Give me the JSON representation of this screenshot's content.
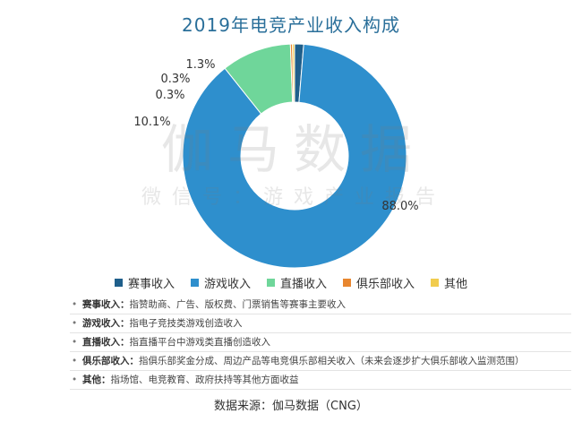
{
  "title": "2019年电竞产业收入构成",
  "watermark": {
    "main": "伽马数据",
    "sub": "微信号：游戏产业报告"
  },
  "chart_data": {
    "type": "pie",
    "title": "2019年电竞产业收入构成",
    "donut": true,
    "legend_position": "bottom",
    "slices": [
      {
        "name": "赛事收入",
        "value": 1.3,
        "label": "1.3%",
        "color": "#1f5f8b"
      },
      {
        "name": "游戏收入",
        "value": 88.0,
        "label": "88.0%",
        "color": "#2e8fcd"
      },
      {
        "name": "直播收入",
        "value": 10.1,
        "label": "10.1%",
        "color": "#6fd69a"
      },
      {
        "name": "俱乐部收入",
        "value": 0.3,
        "label": "0.3%",
        "color": "#e8862f"
      },
      {
        "name": "其他",
        "value": 0.3,
        "label": "0.3%",
        "color": "#f1cc4e"
      }
    ]
  },
  "notes": [
    {
      "term": "赛事收入：",
      "desc": "指赞助商、广告、版权费、门票销售等赛事主要收入"
    },
    {
      "term": "游戏收入：",
      "desc": "指电子竞技类游戏创造收入"
    },
    {
      "term": "直播收入：",
      "desc": "指直播平台中游戏类直播创造收入"
    },
    {
      "term": "俱乐部收入：",
      "desc": "指俱乐部奖金分成、周边产品等电竞俱乐部相关收入（未来会逐步扩大俱乐部收入监测范围）"
    },
    {
      "term": "其他：",
      "desc": "指场馆、电竞教育、政府扶持等其他方面收益"
    }
  ],
  "source": "数据来源：伽马数据（CNG）"
}
